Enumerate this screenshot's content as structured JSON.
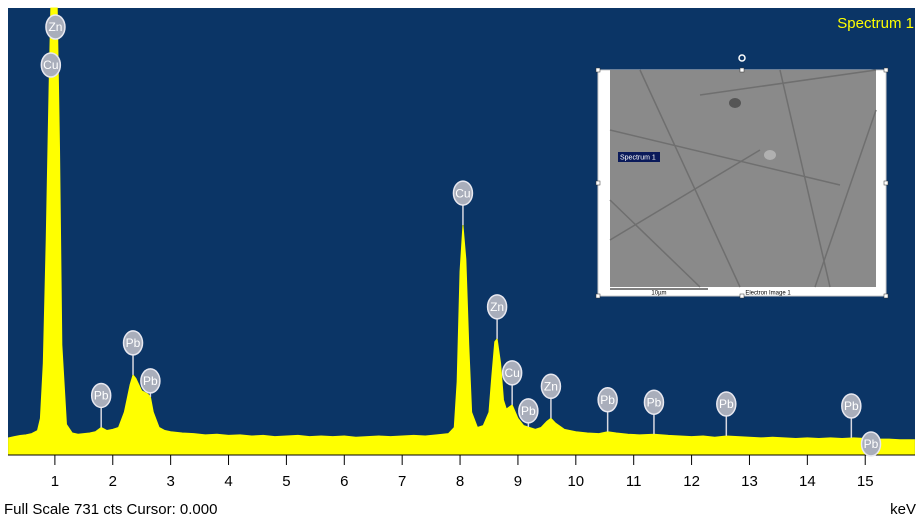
{
  "chart_data": {
    "type": "spectrum",
    "title": "Spectrum 1",
    "xlabel": "keV",
    "status": "Full Scale 731 cts Cursor: 0.000",
    "color": "#ffff00",
    "background": "#0b3566",
    "xlim": [
      0.19,
      15.86
    ],
    "ylim": [
      0,
      731
    ],
    "xticks": [
      1,
      2,
      3,
      4,
      5,
      6,
      7,
      8,
      9,
      10,
      11,
      12,
      13,
      14,
      15
    ],
    "x": [
      0.2,
      0.3,
      0.4,
      0.5,
      0.6,
      0.7,
      0.75,
      0.8,
      0.85,
      0.9,
      0.93,
      0.96,
      1.0,
      1.04,
      1.08,
      1.12,
      1.2,
      1.3,
      1.4,
      1.5,
      1.6,
      1.7,
      1.8,
      1.9,
      2.0,
      2.1,
      2.2,
      2.3,
      2.35,
      2.4,
      2.5,
      2.6,
      2.65,
      2.7,
      2.8,
      2.9,
      3.0,
      3.2,
      3.4,
      3.6,
      3.8,
      4.0,
      4.2,
      4.4,
      4.6,
      4.8,
      5.0,
      5.2,
      5.4,
      5.6,
      5.8,
      6.0,
      6.2,
      6.4,
      6.6,
      6.8,
      7.0,
      7.2,
      7.4,
      7.6,
      7.8,
      7.9,
      7.95,
      8.0,
      8.05,
      8.1,
      8.15,
      8.2,
      8.3,
      8.4,
      8.5,
      8.55,
      8.6,
      8.64,
      8.7,
      8.75,
      8.8,
      8.9,
      9.0,
      9.1,
      9.2,
      9.3,
      9.4,
      9.5,
      9.57,
      9.65,
      9.8,
      10.0,
      10.2,
      10.4,
      10.55,
      10.7,
      10.9,
      11.1,
      11.35,
      11.6,
      11.8,
      12.0,
      12.2,
      12.4,
      12.6,
      12.8,
      13.0,
      13.2,
      13.4,
      13.6,
      13.8,
      14.0,
      14.2,
      14.4,
      14.6,
      14.8,
      15.0,
      15.2,
      15.4,
      15.6,
      15.85
    ],
    "values": [
      28,
      30,
      32,
      33,
      35,
      40,
      60,
      150,
      350,
      600,
      731,
      731,
      731,
      731,
      500,
      180,
      50,
      36,
      34,
      35,
      36,
      38,
      45,
      40,
      42,
      45,
      70,
      115,
      131,
      125,
      105,
      100,
      95,
      70,
      45,
      40,
      38,
      36,
      35,
      33,
      34,
      32,
      33,
      31,
      32,
      30,
      31,
      32,
      30,
      31,
      30,
      31,
      29,
      30,
      31,
      30,
      31,
      32,
      31,
      33,
      35,
      45,
      120,
      300,
      376,
      320,
      180,
      70,
      45,
      48,
      70,
      130,
      185,
      190,
      150,
      90,
      75,
      82,
      60,
      48,
      45,
      42,
      45,
      55,
      60,
      52,
      42,
      38,
      36,
      35,
      38,
      36,
      34,
      33,
      34,
      32,
      31,
      30,
      31,
      29,
      31,
      30,
      29,
      28,
      29,
      28,
      27,
      28,
      27,
      28,
      27,
      28,
      27,
      26,
      26,
      25,
      25
    ],
    "peak_labels": [
      {
        "label": "Zn",
        "x": 1.01
      },
      {
        "label": "Cu",
        "x": 0.93
      },
      {
        "label": "Pb",
        "x": 1.8
      },
      {
        "label": "Pb",
        "x": 2.35
      },
      {
        "label": "Pb",
        "x": 2.65
      },
      {
        "label": "Cu",
        "x": 8.05
      },
      {
        "label": "Zn",
        "x": 8.64
      },
      {
        "label": "Cu",
        "x": 8.9
      },
      {
        "label": "Pb",
        "x": 9.18
      },
      {
        "label": "Zn",
        "x": 9.57
      },
      {
        "label": "Pb",
        "x": 10.55
      },
      {
        "label": "Pb",
        "x": 11.35
      },
      {
        "label": "Pb",
        "x": 12.6
      },
      {
        "label": "Pb",
        "x": 14.76
      },
      {
        "label": "Pb",
        "x": 15.1
      }
    ]
  },
  "inset": {
    "marker_label": "Spectrum 1",
    "scale_bar": "10µm",
    "caption": "Electron Image 1"
  }
}
